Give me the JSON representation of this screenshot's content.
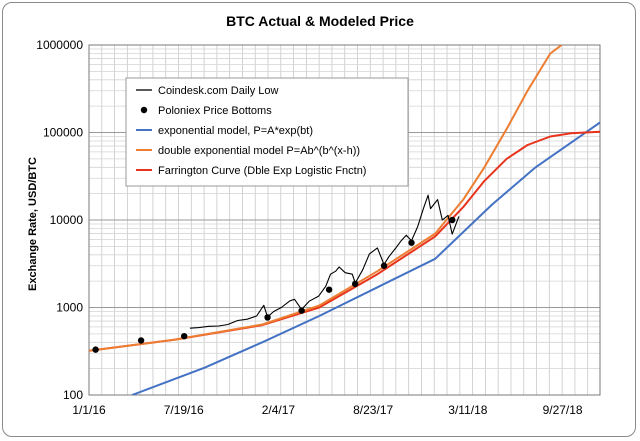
{
  "chart_data": {
    "type": "line",
    "title": "BTC Actual & Modeled Price",
    "ylabel": "Exchange Rate, USD/BTC",
    "xlabel": "",
    "y_scale": "log",
    "ylim": [
      100,
      1000000
    ],
    "xlim": [
      "2016-01-01",
      "2018-12-15"
    ],
    "x_ticks": [
      "1/1/16",
      "7/19/16",
      "2/4/17",
      "8/23/17",
      "3/11/18",
      "9/27/18"
    ],
    "x_tick_dates": [
      "2016-01-01",
      "2016-07-19",
      "2017-02-04",
      "2017-08-23",
      "2018-03-11",
      "2018-09-27"
    ],
    "y_ticks": [
      "100",
      "1000",
      "10000",
      "100000",
      "1000000"
    ],
    "y_tick_values": [
      100,
      1000,
      10000,
      100000,
      1000000
    ],
    "grid": true,
    "legend_position": "top-left",
    "series": [
      {
        "name": "Coindesk.com Daily Low",
        "kind": "line",
        "color": "#000000",
        "points": [
          [
            "2016-08-01",
            580
          ],
          [
            "2016-08-20",
            590
          ],
          [
            "2016-09-10",
            610
          ],
          [
            "2016-10-01",
            615
          ],
          [
            "2016-10-20",
            640
          ],
          [
            "2016-11-10",
            710
          ],
          [
            "2016-11-30",
            735
          ],
          [
            "2016-12-20",
            800
          ],
          [
            "2017-01-04",
            1060
          ],
          [
            "2017-01-12",
            780
          ],
          [
            "2017-01-25",
            900
          ],
          [
            "2017-02-10",
            1000
          ],
          [
            "2017-02-28",
            1190
          ],
          [
            "2017-03-10",
            1240
          ],
          [
            "2017-03-25",
            950
          ],
          [
            "2017-04-10",
            1180
          ],
          [
            "2017-04-30",
            1350
          ],
          [
            "2017-05-15",
            1750
          ],
          [
            "2017-05-25",
            2400
          ],
          [
            "2017-06-05",
            2600
          ],
          [
            "2017-06-12",
            2900
          ],
          [
            "2017-06-25",
            2500
          ],
          [
            "2017-07-10",
            2400
          ],
          [
            "2017-07-16",
            1900
          ],
          [
            "2017-08-01",
            2700
          ],
          [
            "2017-08-15",
            4100
          ],
          [
            "2017-09-01",
            4800
          ],
          [
            "2017-09-15",
            3100
          ],
          [
            "2017-09-25",
            3800
          ],
          [
            "2017-10-10",
            4800
          ],
          [
            "2017-10-20",
            5700
          ],
          [
            "2017-11-01",
            6700
          ],
          [
            "2017-11-12",
            5800
          ],
          [
            "2017-11-25",
            8400
          ],
          [
            "2017-12-07",
            13500
          ],
          [
            "2017-12-17",
            19200
          ],
          [
            "2017-12-22",
            13500
          ],
          [
            "2018-01-06",
            17100
          ],
          [
            "2018-01-16",
            10000
          ],
          [
            "2018-01-28",
            11300
          ],
          [
            "2018-02-06",
            6900
          ],
          [
            "2018-02-20",
            11000
          ]
        ]
      },
      {
        "name": "Poloniex Price Bottoms",
        "kind": "points",
        "color": "#000000",
        "points": [
          [
            "2016-01-15",
            330
          ],
          [
            "2016-04-20",
            420
          ],
          [
            "2016-07-20",
            470
          ],
          [
            "2017-01-12",
            770
          ],
          [
            "2017-03-25",
            920
          ],
          [
            "2017-05-22",
            1600
          ],
          [
            "2017-07-16",
            1860
          ],
          [
            "2017-09-15",
            3000
          ],
          [
            "2017-11-12",
            5500
          ],
          [
            "2018-02-06",
            10000
          ]
        ]
      },
      {
        "name": "exponential model, P=A*exp(bt)",
        "kind": "line",
        "color": "#4472c4",
        "points": [
          [
            "2016-04-01",
            100
          ],
          [
            "2016-09-01",
            205
          ],
          [
            "2017-01-01",
            400
          ],
          [
            "2017-05-01",
            800
          ],
          [
            "2017-09-01",
            1700
          ],
          [
            "2018-01-01",
            3600
          ],
          [
            "2018-05-01",
            15000
          ],
          [
            "2018-08-01",
            40000
          ],
          [
            "2018-12-15",
            130000
          ]
        ]
      },
      {
        "name": "double exponential model P=Ab^(b^(x-h))",
        "kind": "line",
        "color": "#ed7d31",
        "points": [
          [
            "2016-01-01",
            320
          ],
          [
            "2016-07-01",
            430
          ],
          [
            "2017-01-01",
            640
          ],
          [
            "2017-05-01",
            1050
          ],
          [
            "2017-09-01",
            2600
          ],
          [
            "2018-01-01",
            7000
          ],
          [
            "2018-03-01",
            17000
          ],
          [
            "2018-04-15",
            40000
          ],
          [
            "2018-06-01",
            110000
          ],
          [
            "2018-07-15",
            300000
          ],
          [
            "2018-09-01",
            800000
          ],
          [
            "2018-09-25",
            1000000
          ]
        ]
      },
      {
        "name": "Farrington Curve (Dble Exp Logistic Fnctn)",
        "kind": "line",
        "color": "#e8341c",
        "points": [
          [
            "2016-01-01",
            320
          ],
          [
            "2016-07-01",
            430
          ],
          [
            "2017-01-01",
            630
          ],
          [
            "2017-05-01",
            1000
          ],
          [
            "2017-09-01",
            2400
          ],
          [
            "2018-01-01",
            6500
          ],
          [
            "2018-03-01",
            14000
          ],
          [
            "2018-04-15",
            28000
          ],
          [
            "2018-06-01",
            50000
          ],
          [
            "2018-07-15",
            72000
          ],
          [
            "2018-09-01",
            90000
          ],
          [
            "2018-10-15",
            98000
          ],
          [
            "2018-12-15",
            102000
          ]
        ]
      }
    ]
  }
}
